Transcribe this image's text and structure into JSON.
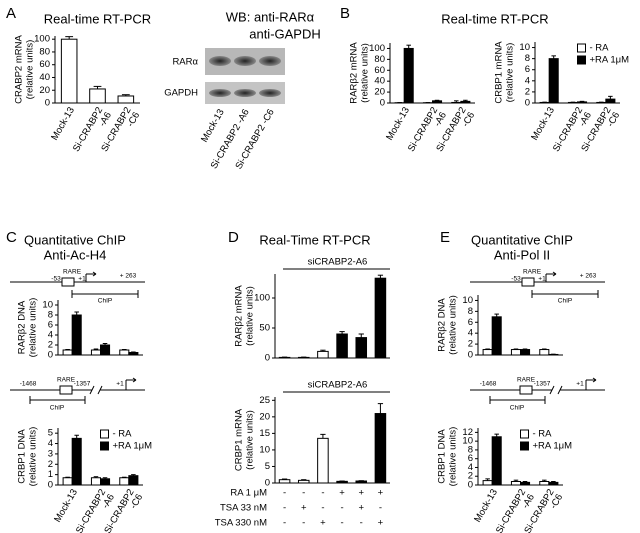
{
  "panels": [
    {
      "letter": "A"
    },
    {
      "letter": "B",
      "title": "Real-time RT-PCR"
    },
    {
      "letter": "C",
      "title": [
        "Quantitative ChIP",
        "Anti-Ac-H4"
      ]
    },
    {
      "letter": "D",
      "title": "Real-Time RT-PCR"
    },
    {
      "letter": "E",
      "title": [
        "Quantitative ChIP",
        "Anti-Pol II"
      ]
    }
  ],
  "blot": {
    "title": [
      "WB: anti-RARα",
      "anti-GAPDH"
    ],
    "bands": [
      "RARα",
      "GAPDH"
    ],
    "lanes": [
      "Mock-13",
      "Si-CRABP2 -A6",
      "Si-CRABP2 -C6"
    ]
  },
  "diagrams": [
    {
      "labels": [
        "RARE",
        "-53",
        "+1",
        "+ 263",
        "ChIP"
      ]
    },
    {
      "labels": [
        "-1468",
        "RARE",
        "-1357",
        "+1",
        "ChIP"
      ]
    },
    {
      "labels": [
        "RARE",
        "-53",
        "+1",
        "+ 263",
        "ChIP"
      ]
    },
    {
      "labels": [
        "-1468",
        "RARE",
        "-1357",
        "+1",
        "ChIP"
      ]
    }
  ],
  "chart_data": [
    {
      "type": "bar",
      "title": "Real-time RT-PCR",
      "ylabel": [
        "CRABP2  mRNA",
        "(relative units)"
      ],
      "categories": [
        [
          "Mock-13"
        ],
        [
          "Si-CRABP2",
          "-A6"
        ],
        [
          "Si-CRABP2",
          "-C6"
        ]
      ],
      "values": [
        100,
        22,
        11
      ],
      "errors": [
        4,
        4,
        2
      ],
      "color": "#ffffff",
      "ylim": [
        0,
        105
      ],
      "yticks": [
        0,
        20,
        40,
        60,
        80,
        100
      ]
    },
    {
      "type": "bar",
      "ylabel": [
        "RARβ2  mRNA",
        "(relative units)"
      ],
      "categories": [
        [
          "Mock-13"
        ],
        [
          "Si-CRABP2",
          "-A6"
        ],
        [
          "Si-CRABP2",
          "-C6"
        ]
      ],
      "series": [
        {
          "color": "#ffffff",
          "values": [
            0.5,
            0.5,
            1
          ],
          "errors": [
            0.3,
            0.3,
            3
          ]
        },
        {
          "color": "#000000",
          "values": [
            100,
            4,
            3
          ],
          "errors": [
            6,
            1,
            2
          ]
        }
      ],
      "ylim": [
        0,
        110
      ],
      "yticks": [
        0,
        20,
        40,
        60,
        80,
        100
      ]
    },
    {
      "type": "bar",
      "ylabel": [
        "CRBP1  mRNA",
        "(relative units)"
      ],
      "categories": [
        [
          "Mock-13"
        ],
        [
          "Si-CRABP2",
          "-A6"
        ],
        [
          "Si-CRABP2",
          "-C6"
        ]
      ],
      "series": [
        {
          "name": "- RA",
          "color": "#ffffff",
          "values": [
            0.1,
            0.1,
            0.1
          ],
          "errors": [
            0.05,
            0.05,
            0.05
          ]
        },
        {
          "name": "+RA 1μM",
          "color": "#000000",
          "values": [
            8,
            0.2,
            0.7
          ],
          "errors": [
            0.5,
            0.1,
            0.5
          ]
        }
      ],
      "legend": "upper right",
      "ylim": [
        0,
        11
      ],
      "yticks": [
        0,
        2,
        4,
        6,
        8,
        10
      ]
    },
    {
      "type": "bar",
      "ylabel": [
        "RARβ2  DNA",
        "(relative units)"
      ],
      "series": [
        {
          "color": "#ffffff",
          "values": [
            1,
            1,
            1
          ],
          "errors": [
            0.1,
            0.2,
            0.1
          ]
        },
        {
          "color": "#000000",
          "values": [
            8,
            2,
            0.5
          ],
          "errors": [
            0.6,
            0.3,
            0.1
          ]
        }
      ],
      "ylim": [
        0,
        11
      ],
      "yticks": [
        0,
        2,
        4,
        6,
        8,
        10
      ]
    },
    {
      "type": "bar",
      "ylabel": [
        "CRBP1 DNA",
        "(relative units)"
      ],
      "categories": [
        [
          "Mock-13"
        ],
        [
          "Si-CRABP2",
          "-A6"
        ],
        [
          "Si-CRABP2",
          "-C6"
        ]
      ],
      "series": [
        {
          "name": "- RA",
          "color": "#ffffff",
          "values": [
            0.7,
            0.7,
            0.7
          ],
          "errors": [
            0.05,
            0.1,
            0.05
          ]
        },
        {
          "name": "+RA 1μM",
          "color": "#000000",
          "values": [
            4.5,
            0.6,
            0.9
          ],
          "errors": [
            0.3,
            0.1,
            0.1
          ]
        }
      ],
      "legend": "upper right",
      "ylim": [
        0,
        5.5
      ],
      "yticks": [
        0,
        1,
        2,
        3,
        4,
        5
      ]
    },
    {
      "type": "bar",
      "subtitle": "siCRABP2-A6",
      "ylabel": [
        "RARβ2  mRNA",
        "(relative units)"
      ],
      "values": [
        1,
        1,
        11,
        40,
        34,
        133
      ],
      "errors": [
        0.5,
        0.5,
        2,
        4,
        6,
        5
      ],
      "colors": [
        "#ffffff",
        "#ffffff",
        "#ffffff",
        "#000000",
        "#000000",
        "#000000"
      ],
      "ylim": [
        0,
        140
      ],
      "yticks": [
        0,
        50,
        100
      ]
    },
    {
      "type": "bar",
      "subtitle": "siCRABP2-A6",
      "ylabel": [
        "CRBP1 mRNA",
        "(relative units)"
      ],
      "values": [
        1,
        0.8,
        13.5,
        0.5,
        0.6,
        21
      ],
      "errors": [
        0.2,
        0.2,
        1.2,
        0.1,
        0.1,
        3
      ],
      "colors": [
        "#ffffff",
        "#ffffff",
        "#ffffff",
        "#000000",
        "#000000",
        "#000000"
      ],
      "ylim": [
        0,
        26
      ],
      "yticks": [
        0,
        5,
        10,
        15,
        20,
        25
      ],
      "treatments": [
        {
          "label": "RA 1 μM",
          "signs": [
            "-",
            "-",
            "-",
            "+",
            "+",
            "+"
          ]
        },
        {
          "label": "TSA 33 nM",
          "signs": [
            "-",
            "+",
            "-",
            "-",
            "+",
            "-"
          ]
        },
        {
          "label": "TSA 330 nM",
          "signs": [
            "-",
            "-",
            "+",
            "-",
            "-",
            "+"
          ]
        }
      ]
    },
    {
      "type": "bar",
      "ylabel": [
        "RARβ2  DNA",
        "(relative units)"
      ],
      "series": [
        {
          "color": "#ffffff",
          "values": [
            1,
            1,
            1
          ],
          "errors": [
            0.1,
            0.1,
            0.1
          ]
        },
        {
          "color": "#000000",
          "values": [
            7,
            1,
            0.1
          ],
          "errors": [
            0.5,
            0.1,
            0.05
          ]
        }
      ],
      "ylim": [
        0,
        11
      ],
      "yticks": [
        0,
        2,
        4,
        6,
        8,
        10
      ]
    },
    {
      "type": "bar",
      "ylabel": [
        "CRBP1 DNA",
        "(relative units)"
      ],
      "categories": [
        [
          "Mock-13"
        ],
        [
          "Si-CRABP2",
          "-A6"
        ],
        [
          "Si-CRABP2",
          "-C6"
        ]
      ],
      "series": [
        {
          "name": "- RA",
          "color": "#ffffff",
          "values": [
            1,
            0.8,
            0.8
          ],
          "errors": [
            0.4,
            0.3,
            0.3
          ]
        },
        {
          "name": "+RA 1μM",
          "color": "#000000",
          "values": [
            11,
            0.6,
            0.6
          ],
          "errors": [
            0.6,
            0.2,
            0.2
          ]
        }
      ],
      "legend": "upper right",
      "ylim": [
        0,
        13
      ],
      "yticks": [
        0,
        2,
        4,
        6,
        8,
        10,
        12
      ]
    }
  ]
}
